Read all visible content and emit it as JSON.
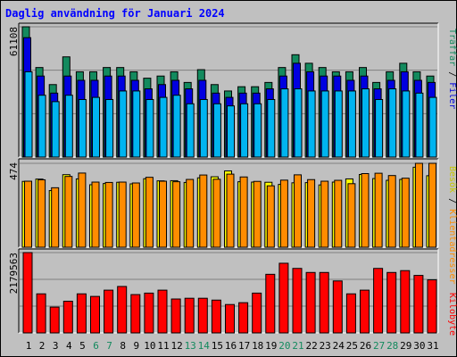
{
  "title": "Daglig användning för Januari 2024",
  "colors": {
    "traffar": "#138a5e",
    "filer": "#0000e0",
    "sidor": "#00b4f0",
    "besok": "#ffff00",
    "klientadresser": "#ff8c00",
    "kilobyte": "#ff0000",
    "weekend_label": "#138a5e",
    "weekday_label": "#000000",
    "background": "#c0c0c0"
  },
  "chart_data": [
    {
      "type": "bar",
      "panel": "top",
      "y_label": "61108",
      "ylim": [
        0,
        61108
      ],
      "x": [
        1,
        2,
        3,
        4,
        5,
        6,
        7,
        8,
        9,
        10,
        11,
        12,
        13,
        14,
        15,
        16,
        17,
        18,
        19,
        20,
        21,
        22,
        23,
        24,
        25,
        26,
        27,
        28,
        29,
        30,
        31
      ],
      "series": [
        {
          "name": "Träffar",
          "values": [
            61108,
            42000,
            34000,
            47000,
            40000,
            40000,
            42000,
            42000,
            40000,
            37000,
            38000,
            40000,
            35000,
            41000,
            34000,
            31000,
            33000,
            33000,
            35000,
            42000,
            48000,
            44000,
            42000,
            40000,
            40000,
            42000,
            35000,
            40000,
            44000,
            40000,
            38000
          ]
        },
        {
          "name": "Filer",
          "values": [
            56000,
            38000,
            30000,
            38000,
            36000,
            36000,
            38000,
            38000,
            36000,
            32000,
            34000,
            36000,
            32000,
            36000,
            30000,
            28000,
            30000,
            30000,
            32000,
            38000,
            44000,
            40000,
            38000,
            38000,
            36000,
            38000,
            32000,
            36000,
            40000,
            36000,
            35000
          ]
        },
        {
          "name": "Sidor",
          "values": [
            40000,
            29000,
            26000,
            29000,
            27000,
            28000,
            27000,
            31000,
            31000,
            27000,
            28000,
            29000,
            25000,
            27000,
            25000,
            24000,
            25000,
            25000,
            27000,
            32000,
            32000,
            31000,
            31000,
            31000,
            31000,
            32000,
            27000,
            32000,
            31000,
            30000,
            28000
          ]
        }
      ]
    },
    {
      "type": "bar",
      "panel": "middle",
      "y_label": "474",
      "ylim": [
        0,
        474
      ],
      "x": [
        1,
        2,
        3,
        4,
        5,
        6,
        7,
        8,
        9,
        10,
        11,
        12,
        13,
        14,
        15,
        16,
        17,
        18,
        19,
        20,
        21,
        22,
        23,
        24,
        25,
        26,
        27,
        28,
        29,
        30,
        31
      ],
      "series": [
        {
          "name": "Besök",
          "values": [
            372,
            385,
            320,
            410,
            386,
            353,
            360,
            367,
            358,
            387,
            375,
            376,
            366,
            392,
            398,
            431,
            370,
            368,
            367,
            355,
            364,
            365,
            352,
            368,
            386,
            411,
            388,
            378,
            383,
            452,
            404
          ]
        },
        {
          "name": "Klientadresser",
          "values": [
            373,
            381,
            336,
            400,
            419,
            368,
            366,
            368,
            363,
            395,
            373,
            370,
            383,
            408,
            384,
            413,
            397,
            372,
            347,
            379,
            409,
            382,
            373,
            378,
            359,
            416,
            418,
            405,
            390,
            474,
            474
          ]
        }
      ]
    },
    {
      "type": "bar",
      "panel": "bottom",
      "y_label": "2179563",
      "ylim": [
        0,
        2179563
      ],
      "x": [
        1,
        2,
        3,
        4,
        5,
        6,
        7,
        8,
        9,
        10,
        11,
        12,
        13,
        14,
        15,
        16,
        17,
        18,
        19,
        20,
        21,
        22,
        23,
        24,
        25,
        26,
        27,
        28,
        29,
        30,
        31
      ],
      "series": [
        {
          "name": "Kilobyte",
          "values": [
            2179563,
            1060000,
            700000,
            860000,
            1060000,
            990000,
            1160000,
            1260000,
            1040000,
            1080000,
            1160000,
            920000,
            940000,
            940000,
            890000,
            770000,
            820000,
            1080000,
            1590000,
            1890000,
            1750000,
            1640000,
            1640000,
            1410000,
            1060000,
            1160000,
            1750000,
            1640000,
            1690000,
            1560000,
            1440000
          ]
        }
      ]
    }
  ],
  "legend_right": {
    "top": {
      "filer": "Filer",
      "traffar": "Träffar",
      "sep": "/"
    },
    "middle": {
      "klientadresser": "Klientadresser",
      "besok": "Besök",
      "sep": "/"
    },
    "bottom": {
      "kilobyte": "Kilobyte"
    }
  },
  "weekend_days": [
    6,
    7,
    13,
    14,
    20,
    21,
    27,
    28
  ]
}
